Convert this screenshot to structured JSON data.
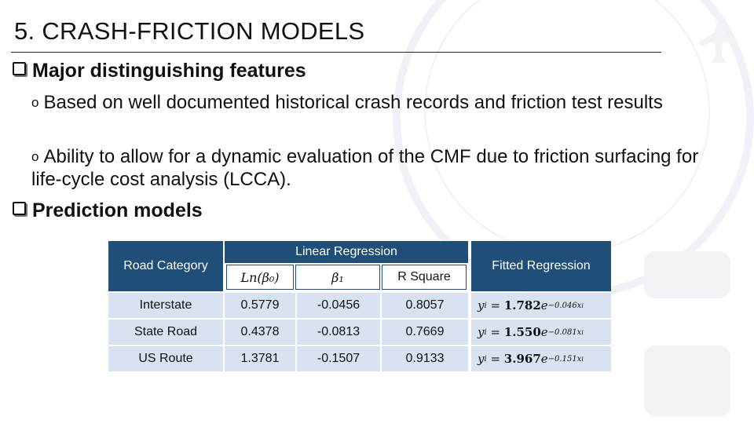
{
  "title": "5. CRASH-FRICTION MODELS",
  "bullets": {
    "major": "Major distinguishing features",
    "sub1": "Based on well documented historical crash records and friction test results",
    "sub2": "Ability to allow for a dynamic evaluation of the CMF due to friction surfacing for life-cycle cost analysis (LCCA).",
    "prediction": "Prediction models"
  },
  "table": {
    "col_road": "Road Category",
    "col_linear": "Linear Regression",
    "col_ln": "Ln(β₀)",
    "col_b1": "β₁",
    "col_r2": "R Square",
    "col_fitted": "Fitted Regression",
    "rows": [
      {
        "road": "Interstate",
        "ln": "0.5779",
        "b1": "-0.0456",
        "r2": "0.8057",
        "fit_coef": "1.782",
        "fit_exp": "−0.046x"
      },
      {
        "road": "State Road",
        "ln": "0.4378",
        "b1": "-0.0813",
        "r2": "0.7669",
        "fit_coef": "1.550",
        "fit_exp": "−0.081x"
      },
      {
        "road": "US Route",
        "ln": "1.3781",
        "b1": "-0.1507",
        "r2": "0.9133",
        "fit_coef": "3.967",
        "fit_exp": "−0.151x"
      }
    ]
  },
  "colors": {
    "header": "#1f4e79",
    "row": "#d9e2f1"
  }
}
